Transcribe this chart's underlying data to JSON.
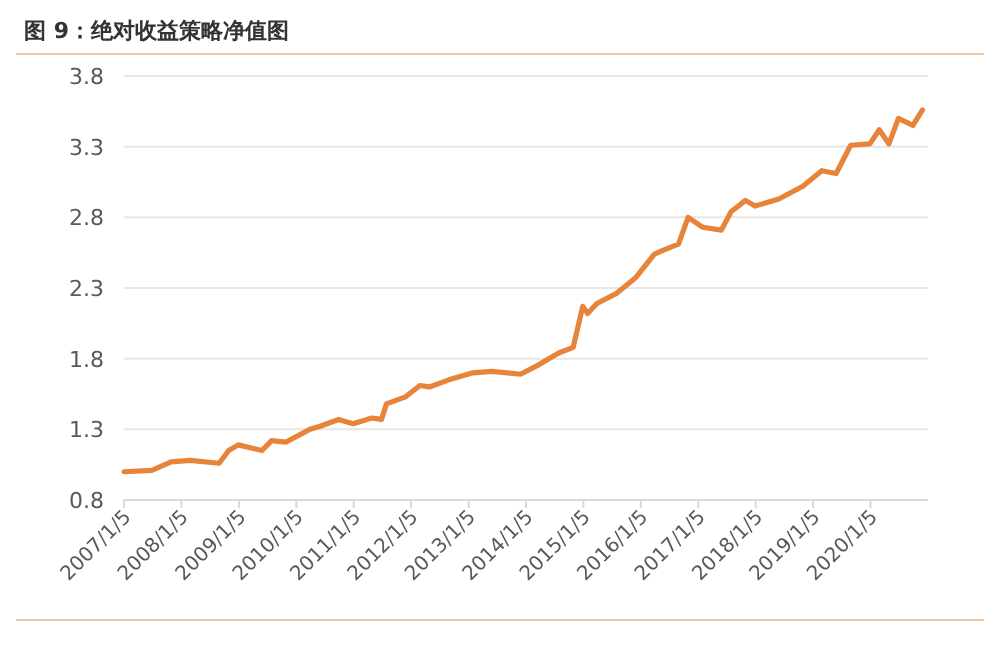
{
  "chart_data": {
    "type": "line",
    "title": "图 9：绝对收益策略净值图",
    "x": [
      "2007-01-05",
      "2007-07",
      "2007-11",
      "2008-03",
      "2008-09",
      "2008-11",
      "2009-01",
      "2009-06",
      "2009-08",
      "2009-11",
      "2010-04",
      "2010-06",
      "2010-10",
      "2011-01",
      "2011-05",
      "2011-07",
      "2011-08",
      "2011-12",
      "2012-03",
      "2012-05",
      "2012-09",
      "2013-02",
      "2013-06",
      "2013-12",
      "2014-04",
      "2014-08",
      "2014-11",
      "2015-01",
      "2015-02",
      "2015-04",
      "2015-08",
      "2015-12",
      "2016-04",
      "2016-06",
      "2016-09",
      "2016-11",
      "2017-02",
      "2017-06",
      "2017-08",
      "2017-11",
      "2018-01",
      "2018-06",
      "2018-11",
      "2019-03",
      "2019-06",
      "2019-09",
      "2020-01",
      "2020-03",
      "2020-05",
      "2020-07",
      "2020-10",
      "2020-12"
    ],
    "series": [
      {
        "color": "#e8833a",
        "values": [
          1.0,
          1.01,
          1.07,
          1.08,
          1.06,
          1.15,
          1.19,
          1.15,
          1.22,
          1.21,
          1.3,
          1.32,
          1.37,
          1.34,
          1.38,
          1.37,
          1.48,
          1.53,
          1.61,
          1.6,
          1.65,
          1.7,
          1.71,
          1.69,
          1.76,
          1.84,
          1.88,
          2.17,
          2.12,
          2.19,
          2.26,
          2.37,
          2.54,
          2.57,
          2.61,
          2.8,
          2.73,
          2.71,
          2.84,
          2.92,
          2.88,
          2.93,
          3.02,
          3.13,
          3.11,
          3.31,
          3.32,
          3.42,
          3.32,
          3.5,
          3.45,
          3.56
        ]
      }
    ],
    "xlim": [
      "2007-01-05",
      "2021-01-05"
    ],
    "xticks": [
      {
        "value": "2007-01-05",
        "label": "2007/1/5"
      },
      {
        "value": "2008-01-05",
        "label": "2008/1/5"
      },
      {
        "value": "2009-01-05",
        "label": "2009/1/5"
      },
      {
        "value": "2010-01-05",
        "label": "2010/1/5"
      },
      {
        "value": "2011-01-05",
        "label": "2011/1/5"
      },
      {
        "value": "2012-01-05",
        "label": "2012/1/5"
      },
      {
        "value": "2013-01-05",
        "label": "2013/1/5"
      },
      {
        "value": "2014-01-05",
        "label": "2014/1/5"
      },
      {
        "value": "2015-01-05",
        "label": "2015/1/5"
      },
      {
        "value": "2016-01-05",
        "label": "2016/1/5"
      },
      {
        "value": "2017-01-05",
        "label": "2017/1/5"
      },
      {
        "value": "2018-01-05",
        "label": "2018/1/5"
      },
      {
        "value": "2019-01-05",
        "label": "2019/1/5"
      },
      {
        "value": "2020-01-05",
        "label": "2020/1/5"
      }
    ],
    "ylim": [
      0.8,
      3.8
    ],
    "yticks": [
      0.8,
      1.3,
      1.8,
      2.3,
      2.8,
      3.3,
      3.8
    ],
    "grid": "y",
    "line_style": "solid"
  }
}
